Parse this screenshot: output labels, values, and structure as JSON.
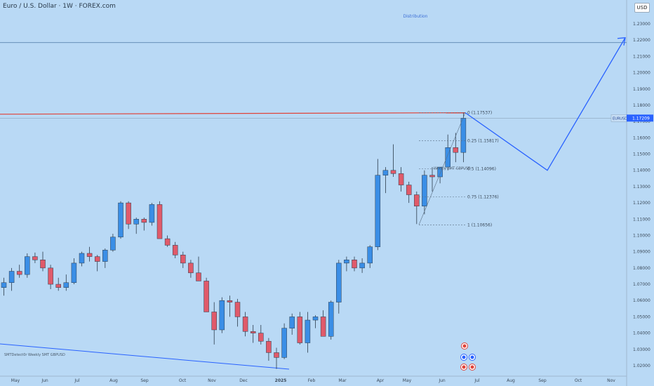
{
  "header": {
    "title": "Euro / U.S. Dollar · 1W · FOREX.com",
    "currency_button": "USD"
  },
  "annotations": {
    "distribution": "Distribution",
    "smt_label": "SMTDetect0r  Weekly SMT GBPUSD",
    "smt_label_mid": "Weekly SMT GBPUSD"
  },
  "fib": [
    {
      "label": "0 (1.17537)"
    },
    {
      "label": "0.25 (1.15817)"
    },
    {
      "label": "0.5 (1.14096)"
    },
    {
      "label": "0.75 (1.12376)"
    },
    {
      "label": "1 (1.10656)"
    }
  ],
  "price_tag": {
    "symbol": "EURUSD",
    "price": "1.17209",
    "color": "#2962ff"
  },
  "colors": {
    "background": "#b9d9f5",
    "up": "#3a8ee6",
    "down": "#e05a6a",
    "projection": "#2962ff",
    "resistance": "#e0443a"
  },
  "chart_data": {
    "type": "candlestick",
    "symbol": "EURUSD",
    "timeframe": "1W",
    "y_ticks": [
      "1.23000",
      "1.22000",
      "1.21000",
      "1.20000",
      "1.19000",
      "1.18000",
      "1.17000",
      "1.16000",
      "1.15000",
      "1.14000",
      "1.13000",
      "1.12000",
      "1.11000",
      "1.10000",
      "1.09000",
      "1.08000",
      "1.07000",
      "1.06000",
      "1.05000",
      "1.04000",
      "1.03000",
      "1.02000"
    ],
    "x_ticks": [
      "May",
      "Jun",
      "Jul",
      "Aug",
      "Sep",
      "Oct",
      "Nov",
      "Dec",
      "2025",
      "Feb",
      "Mar",
      "Apr",
      "May",
      "Jun",
      "Jul",
      "Aug",
      "Sep",
      "Oct",
      "Nov"
    ],
    "ylim": [
      1.015,
      1.235
    ],
    "candles": [
      [
        1.068,
        1.074,
        1.063,
        1.071
      ],
      [
        1.071,
        1.08,
        1.066,
        1.078
      ],
      [
        1.078,
        1.082,
        1.074,
        1.076
      ],
      [
        1.076,
        1.089,
        1.074,
        1.087
      ],
      [
        1.087,
        1.0895,
        1.083,
        1.085
      ],
      [
        1.085,
        1.09,
        1.078,
        1.08
      ],
      [
        1.08,
        1.082,
        1.067,
        1.07
      ],
      [
        1.07,
        1.074,
        1.066,
        1.068
      ],
      [
        1.068,
        1.076,
        1.066,
        1.071
      ],
      [
        1.071,
        1.086,
        1.07,
        1.083
      ],
      [
        1.083,
        1.09,
        1.081,
        1.089
      ],
      [
        1.089,
        1.093,
        1.084,
        1.087
      ],
      [
        1.087,
        1.088,
        1.078,
        1.084
      ],
      [
        1.084,
        1.092,
        1.08,
        1.091
      ],
      [
        1.091,
        1.101,
        1.09,
        1.099
      ],
      [
        1.099,
        1.121,
        1.098,
        1.12
      ],
      [
        1.12,
        1.121,
        1.104,
        1.107
      ],
      [
        1.107,
        1.111,
        1.101,
        1.11
      ],
      [
        1.11,
        1.111,
        1.103,
        1.108
      ],
      [
        1.108,
        1.12,
        1.106,
        1.119
      ],
      [
        1.119,
        1.121,
        1.099,
        1.098
      ],
      [
        1.098,
        1.1,
        1.093,
        1.094
      ],
      [
        1.094,
        1.096,
        1.086,
        1.088
      ],
      [
        1.088,
        1.09,
        1.08,
        1.083
      ],
      [
        1.083,
        1.085,
        1.074,
        1.077
      ],
      [
        1.077,
        1.087,
        1.072,
        1.072
      ],
      [
        1.072,
        1.074,
        1.053,
        1.053
      ],
      [
        1.053,
        1.059,
        1.033,
        1.042
      ],
      [
        1.042,
        1.062,
        1.04,
        1.06
      ],
      [
        1.06,
        1.063,
        1.05,
        1.059
      ],
      [
        1.059,
        1.061,
        1.044,
        1.05
      ],
      [
        1.05,
        1.053,
        1.038,
        1.041
      ],
      [
        1.041,
        1.045,
        1.034,
        1.04
      ],
      [
        1.04,
        1.045,
        1.033,
        1.035
      ],
      [
        1.035,
        1.037,
        1.023,
        1.028
      ],
      [
        1.028,
        1.031,
        1.018,
        1.025
      ],
      [
        1.025,
        1.046,
        1.024,
        1.043
      ],
      [
        1.043,
        1.052,
        1.039,
        1.05
      ],
      [
        1.05,
        1.053,
        1.033,
        1.034
      ],
      [
        1.034,
        1.053,
        1.028,
        1.048
      ],
      [
        1.048,
        1.051,
        1.043,
        1.05
      ],
      [
        1.05,
        1.054,
        1.038,
        1.038
      ],
      [
        1.038,
        1.06,
        1.036,
        1.059
      ],
      [
        1.059,
        1.085,
        1.052,
        1.083
      ],
      [
        1.083,
        1.087,
        1.078,
        1.085
      ],
      [
        1.085,
        1.087,
        1.078,
        1.08
      ],
      [
        1.08,
        1.086,
        1.077,
        1.083
      ],
      [
        1.083,
        1.094,
        1.08,
        1.093
      ],
      [
        1.093,
        1.147,
        1.091,
        1.137
      ],
      [
        1.137,
        1.142,
        1.126,
        1.14
      ],
      [
        1.14,
        1.156,
        1.136,
        1.138
      ],
      [
        1.138,
        1.142,
        1.127,
        1.131
      ],
      [
        1.131,
        1.133,
        1.12,
        1.125
      ],
      [
        1.125,
        1.127,
        1.107,
        1.118
      ],
      [
        1.118,
        1.14,
        1.113,
        1.137
      ],
      [
        1.137,
        1.142,
        1.127,
        1.136
      ],
      [
        1.136,
        1.142,
        1.132,
        1.142
      ],
      [
        1.142,
        1.162,
        1.14,
        1.154
      ],
      [
        1.154,
        1.163,
        1.145,
        1.151
      ],
      [
        1.151,
        1.1754,
        1.145,
        1.172
      ]
    ],
    "resistance_level": 1.1754,
    "upper_line_level": 1.2185,
    "fib_levels": [
      1.17537,
      1.15817,
      1.14096,
      1.12376,
      1.10656
    ],
    "projection_path": [
      [
        "2025-06-16",
        1.1754
      ],
      [
        "2025-09-01",
        1.14
      ],
      [
        "2025-11-24",
        1.223
      ]
    ],
    "bottom_trendline": [
      [
        "2024-04-15",
        1.035
      ],
      [
        "2025-01-06",
        1.02
      ]
    ]
  }
}
